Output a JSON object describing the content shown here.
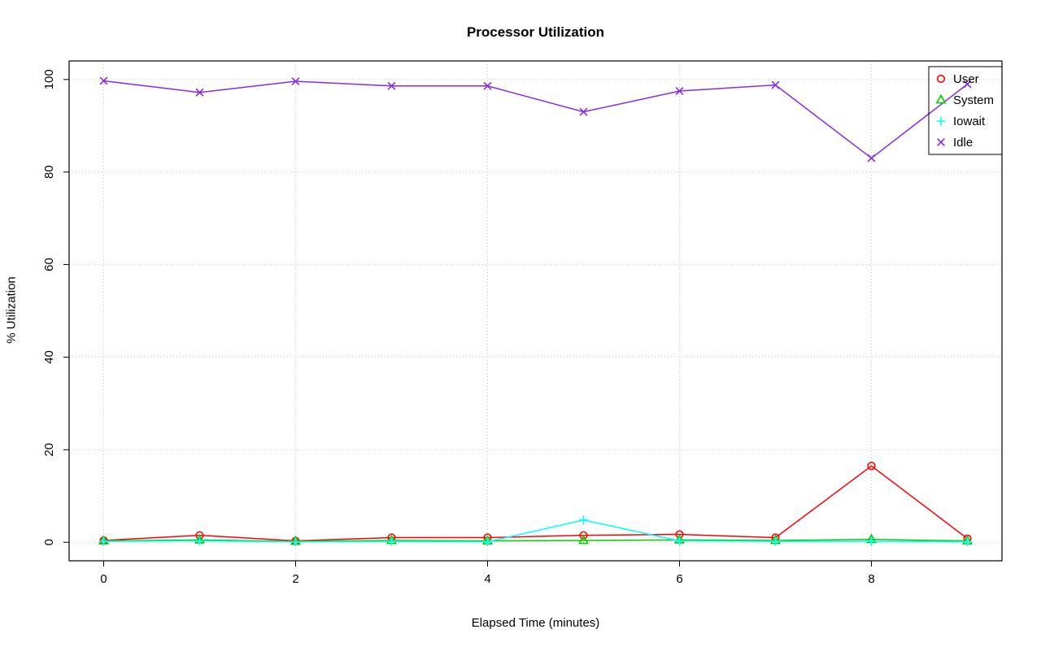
{
  "chart_data": {
    "type": "line",
    "title": "Processor Utilization",
    "xlabel": "Elapsed Time (minutes)",
    "ylabel": "% Utilization",
    "xlim": [
      0,
      9
    ],
    "ylim": [
      0,
      100
    ],
    "x_ticks": [
      0,
      2,
      4,
      6,
      8
    ],
    "y_ticks": [
      0,
      20,
      40,
      60,
      80,
      100
    ],
    "grid": true,
    "legend_position": "top-right",
    "x": [
      0,
      1,
      2,
      3,
      4,
      5,
      6,
      7,
      8,
      9
    ],
    "series": [
      {
        "name": "User",
        "marker": "circle",
        "color": "#ff0000",
        "values": [
          0.4,
          1.5,
          0.3,
          1.0,
          1.0,
          1.5,
          1.7,
          1.0,
          16.5,
          0.8
        ]
      },
      {
        "name": "System",
        "marker": "triangle",
        "color": "#00cd00",
        "values": [
          0.3,
          0.5,
          0.2,
          0.4,
          0.3,
          0.4,
          0.5,
          0.4,
          0.6,
          0.3
        ]
      },
      {
        "name": "Iowait",
        "marker": "plus",
        "color": "#00ffff",
        "values": [
          0.2,
          0.3,
          0.1,
          0.2,
          0.1,
          4.8,
          0.3,
          0.2,
          0.2,
          0.1
        ]
      },
      {
        "name": "Idle",
        "marker": "x",
        "color": "#8a2be2",
        "values": [
          99.7,
          97.2,
          99.6,
          98.6,
          98.6,
          93.0,
          97.5,
          98.8,
          83.0,
          99.0
        ]
      }
    ],
    "style": {
      "grid_color": "#c9c9c9",
      "axis_color": "#000000",
      "background": "#ffffff"
    }
  }
}
